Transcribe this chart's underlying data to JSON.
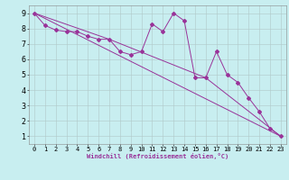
{
  "title": "",
  "xlabel": "Windchill (Refroidissement éolien,°C)",
  "ylabel": "",
  "bg_color": "#c8eef0",
  "line_color": "#993399",
  "grid_color": "#b0c8c8",
  "axis_color": "#888888",
  "xlim": [
    -0.5,
    23.5
  ],
  "ylim": [
    0.5,
    9.5
  ],
  "yticks": [
    1,
    2,
    3,
    4,
    5,
    6,
    7,
    8,
    9
  ],
  "xticks": [
    0,
    1,
    2,
    3,
    4,
    5,
    6,
    7,
    8,
    9,
    10,
    11,
    12,
    13,
    14,
    15,
    16,
    17,
    18,
    19,
    20,
    21,
    22,
    23
  ],
  "series1_x": [
    0,
    1,
    2,
    3,
    4,
    5,
    6,
    7,
    8,
    9,
    10,
    11,
    12,
    13,
    14,
    15,
    16,
    17,
    18,
    19,
    20,
    21,
    22,
    23
  ],
  "series1_y": [
    9.0,
    8.2,
    7.9,
    7.8,
    7.8,
    7.5,
    7.3,
    7.3,
    6.5,
    6.3,
    6.5,
    8.3,
    7.8,
    9.0,
    8.5,
    4.8,
    4.8,
    6.5,
    5.0,
    4.5,
    3.5,
    2.6,
    1.5,
    1.0
  ],
  "series2_x": [
    0,
    23
  ],
  "series2_y": [
    9.0,
    1.0
  ],
  "series3_x": [
    0,
    7,
    16,
    23
  ],
  "series3_y": [
    9.0,
    7.3,
    4.8,
    1.0
  ],
  "tick_labelsize": 5,
  "xlabel_fontsize": 5,
  "marker": "D",
  "markersize": 2.0,
  "linewidth": 0.7
}
